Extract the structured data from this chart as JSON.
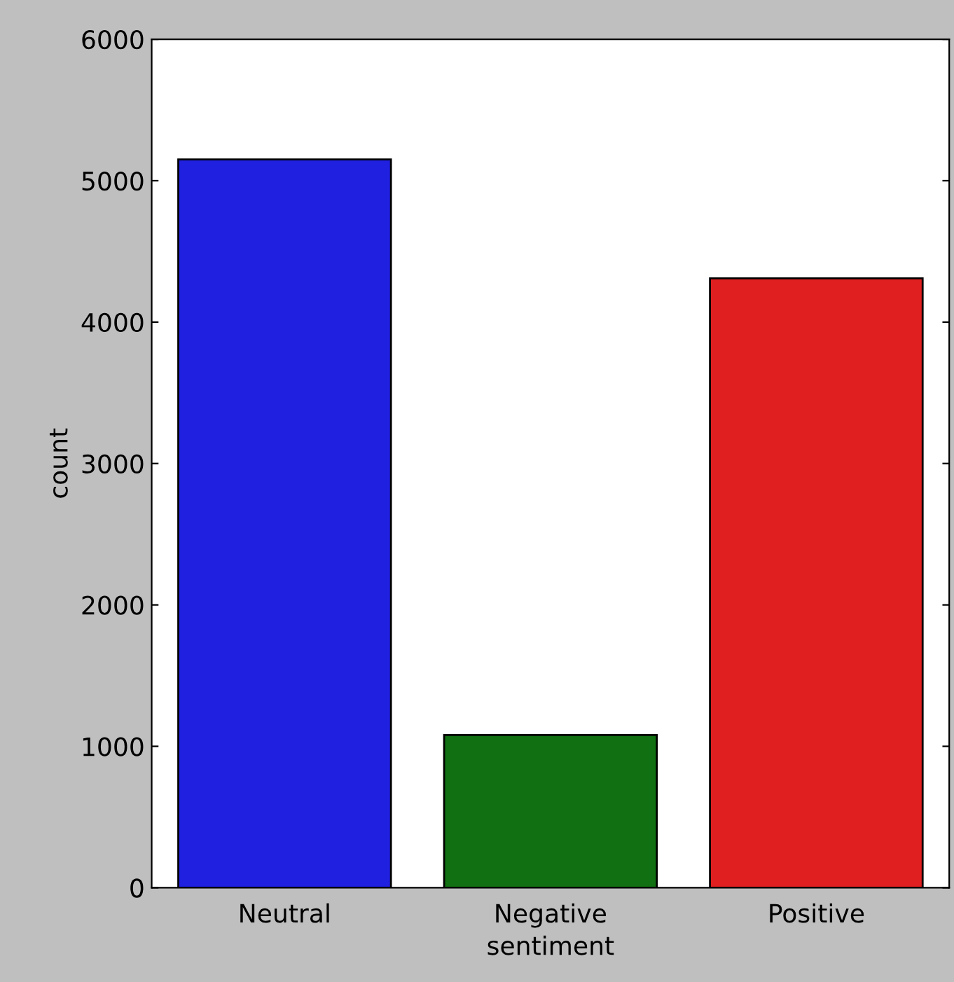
{
  "chart_data": {
    "type": "bar",
    "xlabel": "sentiment",
    "ylabel": "count",
    "categories": [
      "Neutral",
      "Negative",
      "Positive"
    ],
    "values": [
      5150,
      1080,
      4310
    ],
    "colors": [
      "#2020e0",
      "#117011",
      "#e02020"
    ],
    "ylim": [
      0,
      6000
    ],
    "yticks": [
      0,
      1000,
      2000,
      3000,
      4000,
      5000,
      6000
    ],
    "grid": false,
    "legend": false
  }
}
